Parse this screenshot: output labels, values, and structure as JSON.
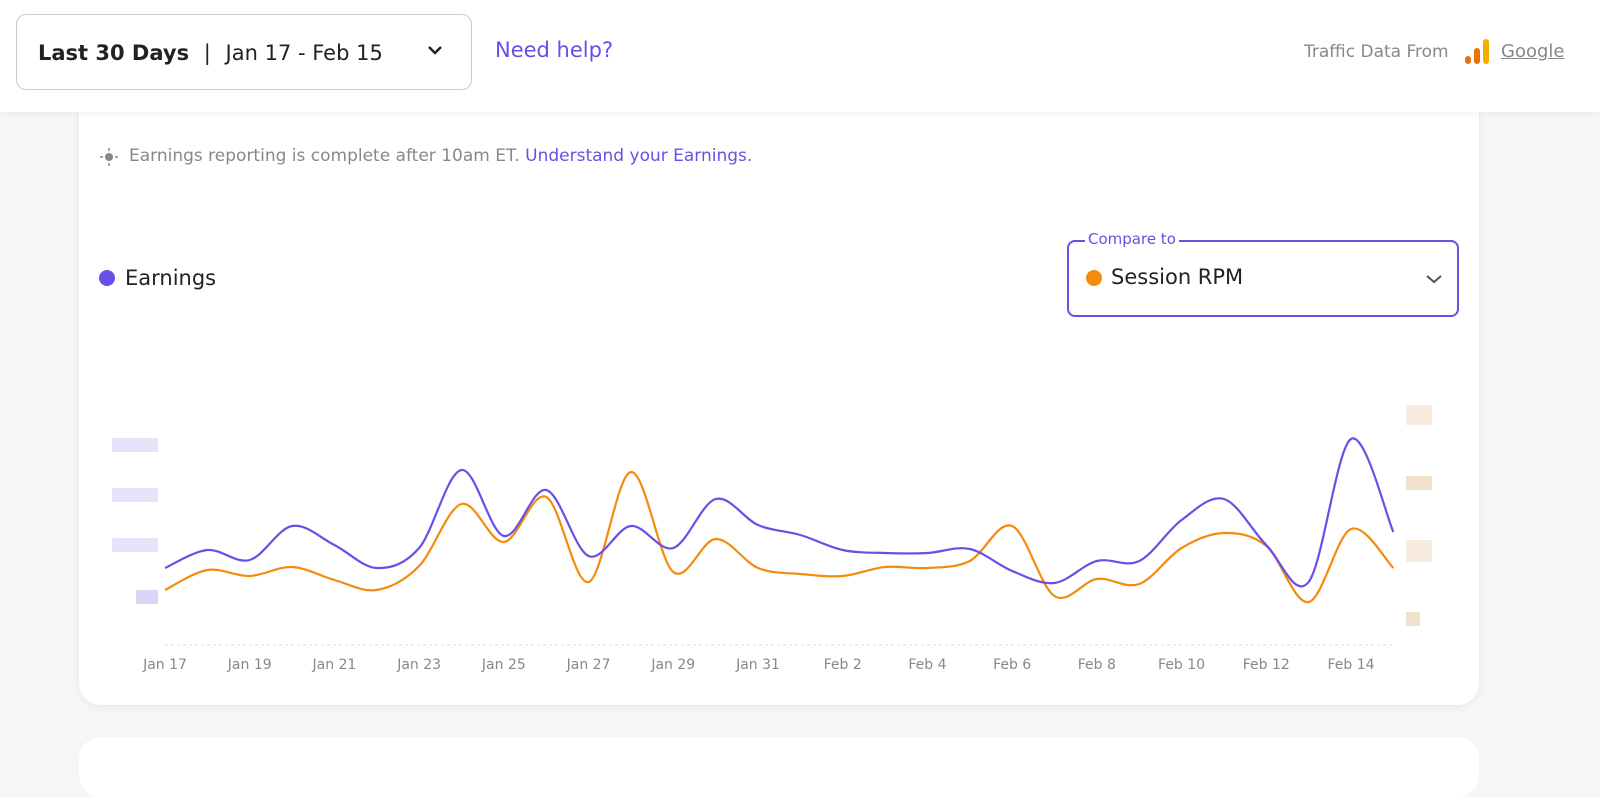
{
  "header": {
    "range_label": "Last 30 Days",
    "separator": "|",
    "date_range": "Jan 17 - Feb 15",
    "help_link": "Need help?",
    "traffic_source_label": "Traffic Data From",
    "traffic_source": "Google"
  },
  "notice": {
    "text": "Earnings reporting is complete after 10am ET.",
    "link": "Understand your Earnings."
  },
  "compare": {
    "label": "Compare to"
  },
  "chart_data": {
    "type": "line",
    "categories": [
      "Jan 17",
      null,
      "Jan 19",
      null,
      "Jan 21",
      null,
      "Jan 23",
      null,
      "Jan 25",
      null,
      "Jan 27",
      null,
      "Jan 29",
      null,
      "Jan 31",
      null,
      "Feb 2",
      null,
      "Feb 4",
      null,
      "Feb 6",
      null,
      "Feb 8",
      null,
      "Feb 10",
      null,
      "Feb 12",
      null,
      "Feb 14",
      null
    ],
    "series": [
      {
        "name": "Earnings",
        "color": "#6a4ee6",
        "values": [
          77,
          95,
          85,
          119,
          100,
          77,
          97,
          175,
          109,
          155,
          89,
          119,
          97,
          146,
          120,
          110,
          95,
          92,
          92,
          96,
          74,
          62,
          84,
          84,
          125,
          146,
          100,
          63,
          206,
          113
        ]
      },
      {
        "name": "Session RPM",
        "color": "#f58a0b",
        "values": [
          55,
          75,
          69,
          78,
          65,
          55,
          79,
          141,
          103,
          148,
          63,
          173,
          73,
          106,
          77,
          71,
          69,
          78,
          77,
          84,
          119,
          49,
          66,
          61,
          97,
          112,
          99,
          43,
          116,
          77
        ]
      }
    ],
    "ylim": [
      0,
      250
    ]
  }
}
